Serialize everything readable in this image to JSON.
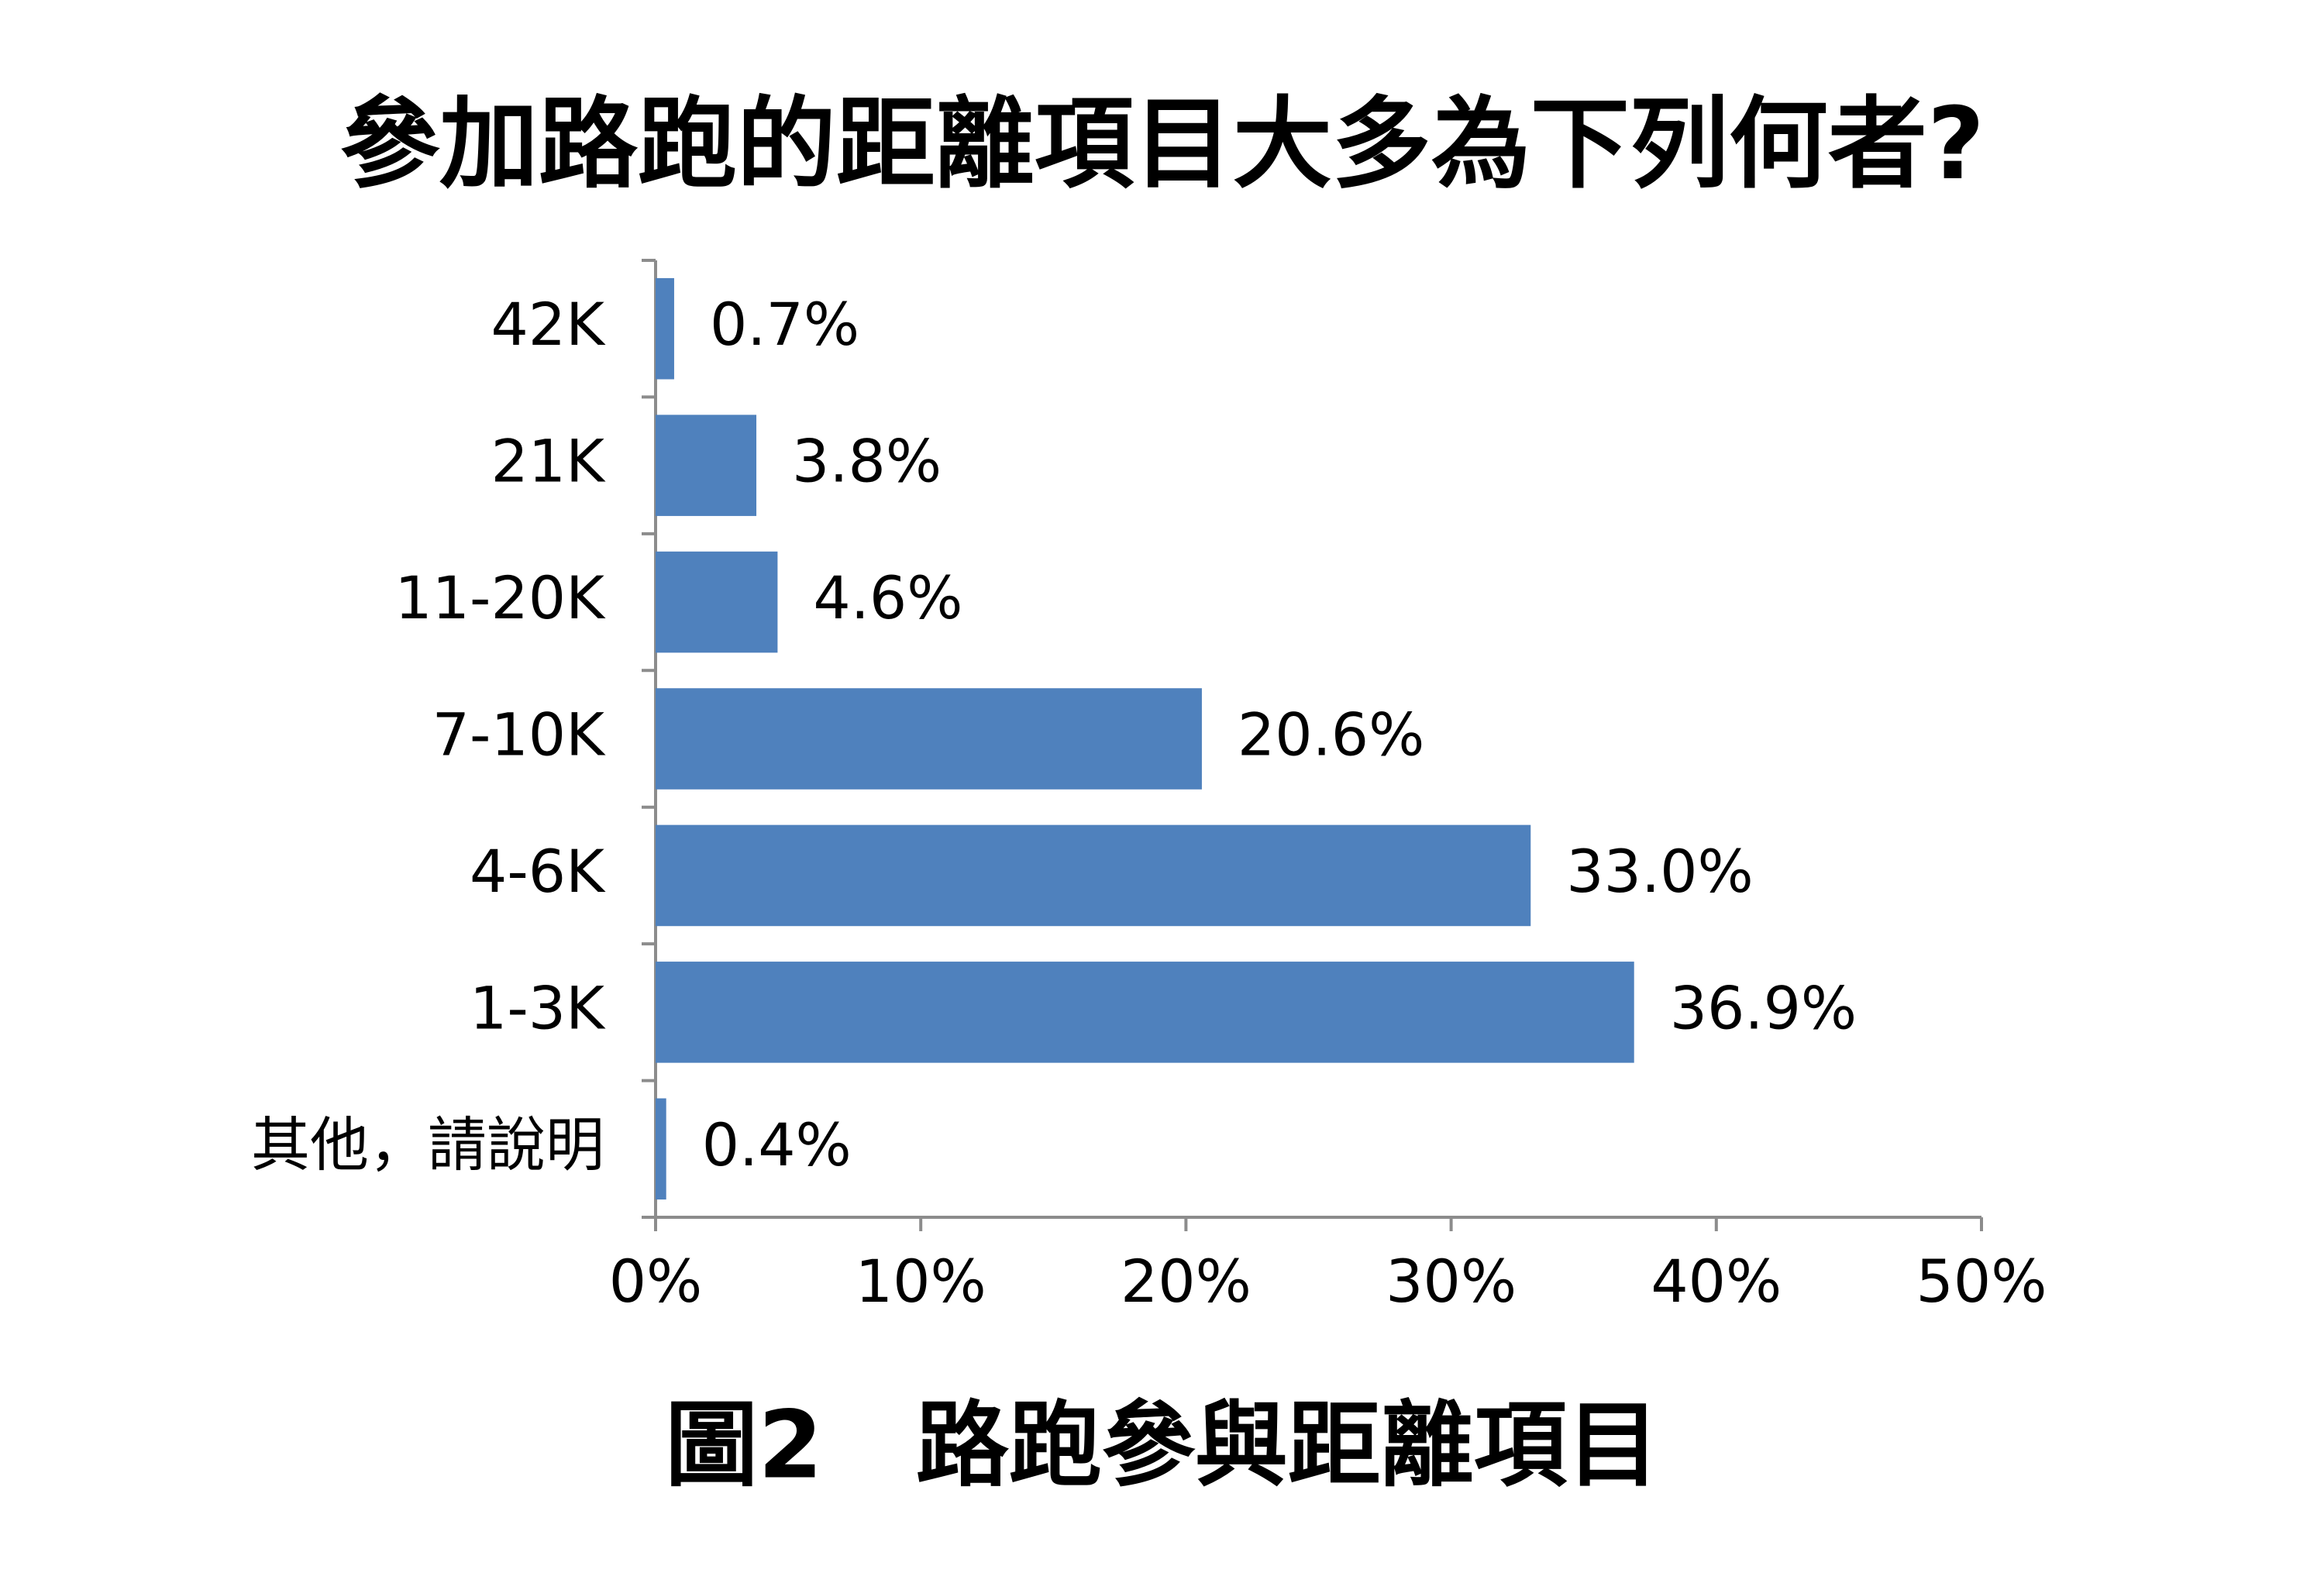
{
  "chart_data": {
    "type": "bar",
    "orientation": "horizontal",
    "title": "參加路跑的距離項目大多為下列何者?",
    "caption": "圖2　路跑參與距離項目",
    "categories": [
      "42K",
      "21K",
      "11-20K",
      "7-10K",
      "4-6K",
      "1-3K",
      "其他，請說明"
    ],
    "values": [
      0.7,
      3.8,
      4.6,
      20.6,
      33.0,
      36.9,
      0.4
    ],
    "value_labels": [
      "0.7%",
      "3.8%",
      "4.6%",
      "20.6%",
      "33.0%",
      "36.9%",
      "0.4%"
    ],
    "color": "#4f81bd",
    "xlim": [
      0,
      50
    ],
    "xticks": [
      {
        "value": 0,
        "label": "0%"
      },
      {
        "value": 10,
        "label": "10%"
      },
      {
        "value": 20,
        "label": "20%"
      },
      {
        "value": 30,
        "label": "30%"
      },
      {
        "value": 40,
        "label": "40%"
      },
      {
        "value": 50,
        "label": "50%"
      }
    ],
    "grid": false
  }
}
